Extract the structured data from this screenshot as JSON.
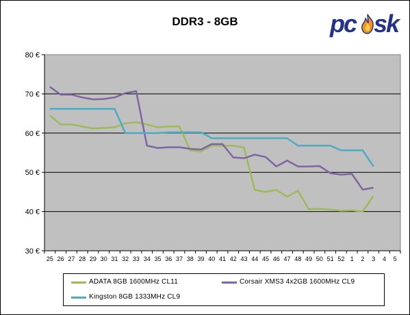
{
  "chart_data": {
    "type": "line",
    "title": "DDR3 - 8GB",
    "y_unit": "€",
    "ylim": [
      30,
      80
    ],
    "y_ticks": [
      "30 €",
      "40 €",
      "50 €",
      "60 €",
      "70 €",
      "80 €"
    ],
    "grid": true,
    "legend_position": "bottom",
    "categories": [
      "25",
      "26",
      "27",
      "28",
      "29",
      "30",
      "31",
      "32",
      "33",
      "34",
      "35",
      "36",
      "37",
      "38",
      "39",
      "40",
      "41",
      "42",
      "43",
      "44",
      "45",
      "46",
      "47",
      "48",
      "49",
      "50",
      "51",
      "52",
      "1",
      "2",
      "3",
      "4",
      "5"
    ],
    "series": [
      {
        "name": "ADATA 8GB 1600MHz CL11",
        "color": "#9bbb59",
        "values": [
          64.5,
          62.2,
          62.2,
          61.7,
          61.2,
          61.3,
          61.5,
          62.5,
          62.8,
          62.2,
          61.5,
          61.7,
          61.7,
          55.6,
          55.3,
          56.8,
          56.8,
          56.8,
          56.3,
          45.5,
          45.0,
          45.5,
          43.8,
          45.3,
          40.6,
          40.7,
          40.5,
          40.2,
          40.3,
          40.0,
          44.0,
          null,
          null
        ]
      },
      {
        "name": "Corsair XMS3 4x2GB 1600MHz CL9",
        "color": "#8064a2",
        "values": [
          71.8,
          69.8,
          69.8,
          69.1,
          68.6,
          68.7,
          69.1,
          70.2,
          70.7,
          56.8,
          56.2,
          56.4,
          56.4,
          56.0,
          55.8,
          57.2,
          57.2,
          53.8,
          53.6,
          54.5,
          53.9,
          51.5,
          53.0,
          51.5,
          51.5,
          51.6,
          49.8,
          49.4,
          49.6,
          45.6,
          46.1,
          null,
          null
        ]
      },
      {
        "name": "Kingston 8GB 1333MHz CL9",
        "color": "#4bacc6",
        "values": [
          66.2,
          66.2,
          66.2,
          66.2,
          66.2,
          66.2,
          66.2,
          60.0,
          60.0,
          60.0,
          60.0,
          60.2,
          60.2,
          60.2,
          60.2,
          58.7,
          58.7,
          58.7,
          58.7,
          58.7,
          58.7,
          58.7,
          58.7,
          56.8,
          56.8,
          56.8,
          56.8,
          55.6,
          55.6,
          55.6,
          51.5,
          null,
          null
        ]
      }
    ]
  },
  "logo": {
    "text": "pcsk",
    "prefix": "pc",
    "suffix": "sk",
    "flame_color": "#f7941d"
  }
}
